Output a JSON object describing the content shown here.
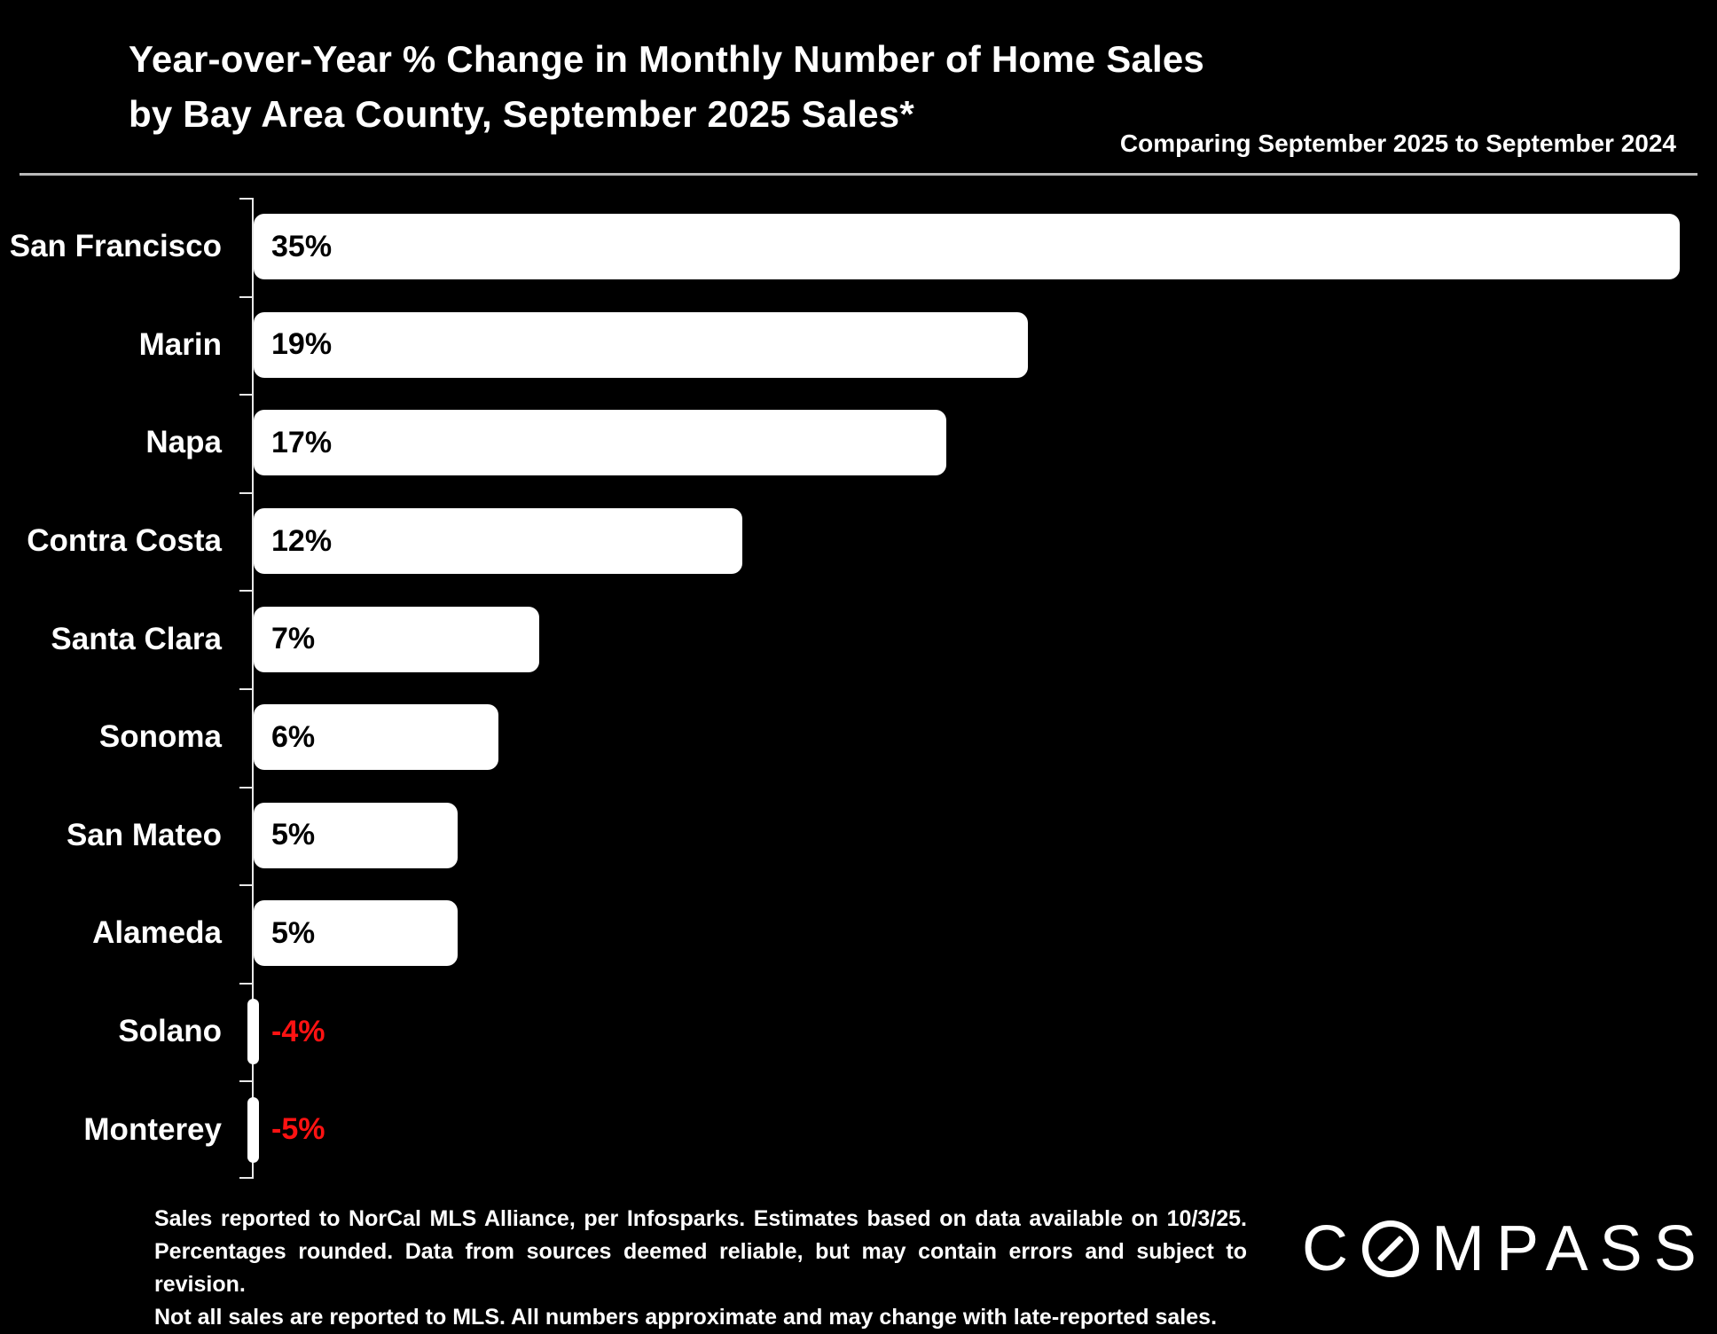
{
  "chart_data": {
    "type": "bar",
    "orientation": "horizontal",
    "title": "Year-over-Year % Change in Monthly Number of Home Sales",
    "subtitle": "by Bay Area County, September 2025 Sales*",
    "note": "Comparing September 2025 to September 2024",
    "categories": [
      "San Francisco",
      "Marin",
      "Napa",
      "Contra Costa",
      "Santa Clara",
      "Sonoma",
      "San Mateo",
      "Alameda",
      "Solano",
      "Monterey"
    ],
    "values": [
      35,
      19,
      17,
      12,
      7,
      6,
      5,
      5,
      -4,
      -5
    ],
    "value_labels": [
      "35%",
      "19%",
      "17%",
      "12%",
      "7%",
      "6%",
      "5%",
      "5%",
      "-4%",
      "-5%"
    ],
    "xlim": [
      0,
      35
    ],
    "grid": false,
    "legend": false,
    "background_color": "#000000",
    "bar_color": "#ffffff",
    "positive_label_color": "#000000",
    "negative_label_color": "#ff1212",
    "category_label_color": "#ffffff"
  },
  "footer": {
    "lines": [
      "Sales reported to NorCal MLS Alliance, per Infosparks. Estimates based on data available on 10/3/25.",
      "Percentages rounded. Data from sources deemed reliable, but may contain errors and subject to revision.",
      "Not all sales are reported to MLS. All numbers approximate and may change with late-reported sales."
    ],
    "logo_c": "C",
    "logo_rest": "MPASS"
  }
}
